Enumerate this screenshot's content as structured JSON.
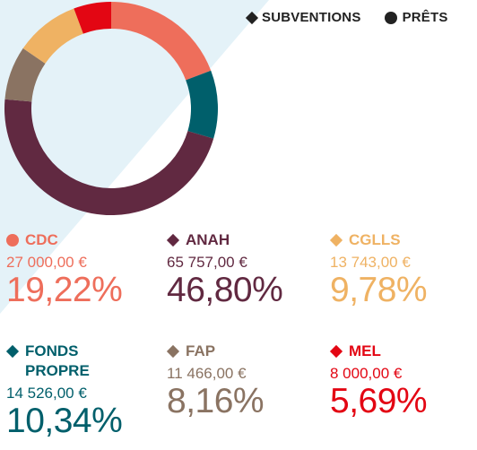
{
  "legend": {
    "subventions_label": "SUBVENTIONS",
    "prets_label": "PRÊTS",
    "subventions_symbol": "diamond",
    "prets_symbol": "circle",
    "color": "#222222"
  },
  "colors": {
    "background_wedge": "#e4f2f8"
  },
  "chart_data": {
    "type": "pie",
    "donut": true,
    "start": "top",
    "direction": "clockwise",
    "slices": [
      {
        "label": "CDC",
        "amount": "27 000,00 €",
        "percent_label": "19,22%",
        "value": 19.22,
        "kind": "prêt",
        "color": "#ee6e5b"
      },
      {
        "label": "FONDS PROPRE",
        "amount": "14 526,00 €",
        "percent_label": "10,34%",
        "value": 10.34,
        "kind": "subvention",
        "color": "#005f6b"
      },
      {
        "label": "ANAH",
        "amount": "65 757,00 €",
        "percent_label": "46,80%",
        "value": 46.8,
        "kind": "subvention",
        "color": "#612941"
      },
      {
        "label": "FAP",
        "amount": "11 466,00 €",
        "percent_label": "8,16%",
        "value": 8.16,
        "kind": "subvention",
        "color": "#8a7362"
      },
      {
        "label": "CGLLS",
        "amount": "13 743,00  €",
        "percent_label": "9,78%",
        "value": 9.78,
        "kind": "subvention",
        "color": "#efb263"
      },
      {
        "label": "MEL",
        "amount": "8 000,00 €",
        "percent_label": "5,69%",
        "value": 5.69,
        "kind": "subvention",
        "color": "#e30613"
      }
    ]
  },
  "cards": [
    {
      "name": "CDC",
      "amount": "27 000,00 €",
      "percent": "19,22%",
      "symbol": "circle",
      "color": "#ee6e5b"
    },
    {
      "name": "ANAH",
      "amount": "65 757,00 €",
      "percent": "46,80%",
      "symbol": "diamond",
      "color": "#612941"
    },
    {
      "name": "CGLLS",
      "amount": "13 743,00  €",
      "percent": "9,78%",
      "symbol": "diamond",
      "color": "#efb263"
    },
    {
      "name": "FONDS PROPRE",
      "amount": "14 526,00 €",
      "percent": "10,34%",
      "symbol": "diamond",
      "color": "#005f6b"
    },
    {
      "name": "FAP",
      "amount": "11 466,00 €",
      "percent": "8,16%",
      "symbol": "diamond",
      "color": "#8a7362"
    },
    {
      "name": "MEL",
      "amount": "8 000,00 €",
      "percent": "5,69%",
      "symbol": "diamond",
      "color": "#e30613"
    }
  ]
}
